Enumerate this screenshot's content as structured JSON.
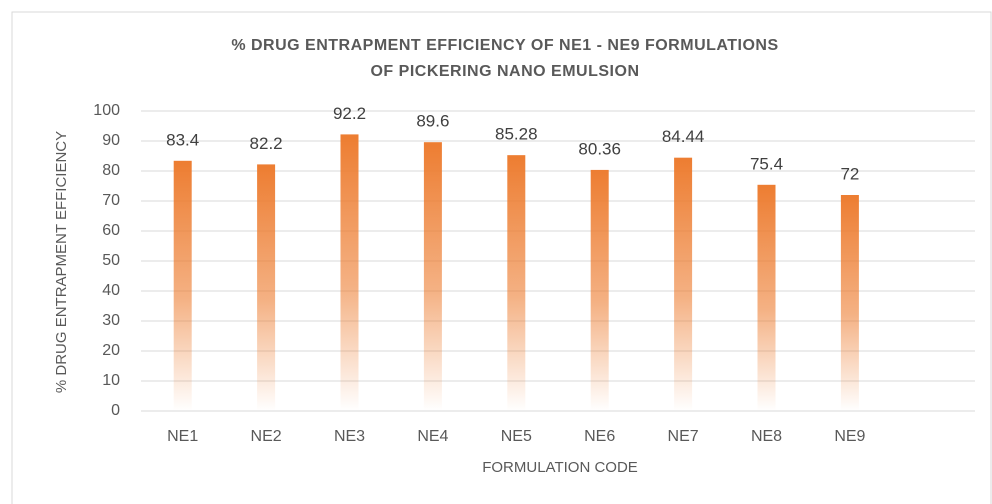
{
  "chart_data": {
    "type": "bar",
    "title": [
      "% DRUG ENTRAPMENT EFFICIENCY  OF NE1 - NE9 FORMULATIONS",
      "OF PICKERING NANO EMULSION"
    ],
    "x_label": "FORMULATION CODE",
    "y_label": "% DRUG ENTRAPMENT EFFICIENCY",
    "categories": [
      "NE1",
      "NE2",
      "NE3",
      "NE4",
      "NE5",
      "NE6",
      "NE7",
      "NE8",
      "NE9",
      null
    ],
    "values": [
      83.4,
      82.2,
      92.2,
      89.6,
      85.28,
      80.36,
      84.44,
      75.4,
      72,
      null
    ],
    "color": "#ed7d31",
    "ylim": [
      0,
      100
    ],
    "yticks": [
      0,
      10,
      20,
      30,
      40,
      50,
      60,
      70,
      80,
      90,
      100
    ],
    "grid": true
  }
}
